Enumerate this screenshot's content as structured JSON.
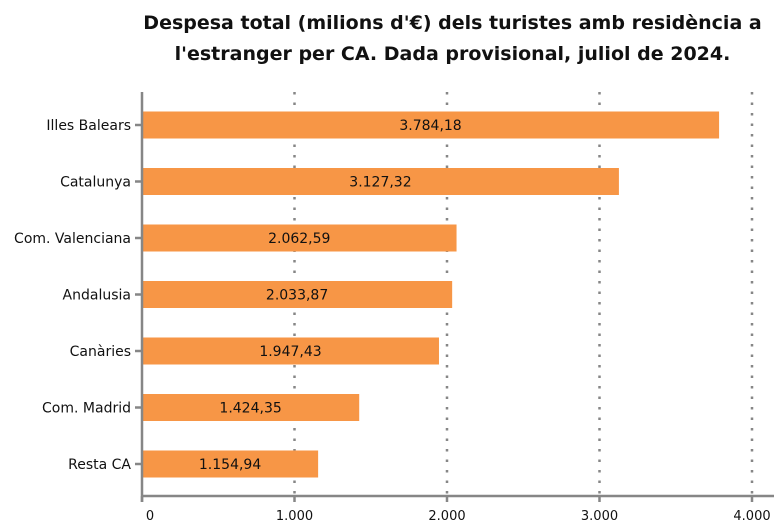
{
  "chart_data": {
    "type": "bar",
    "orientation": "horizontal",
    "title_lines": [
      "Despesa total (milions d'€) dels turistes amb residència a",
      "l'estranger per CA. Dada provisional, juliol de 2024."
    ],
    "categories": [
      "Illes Balears",
      "Catalunya",
      "Com. Valenciana",
      "Andalusia",
      "Canàries",
      "Com. Madrid",
      "Resta CA"
    ],
    "values": [
      3784.18,
      3127.32,
      2062.59,
      2033.87,
      1947.43,
      1424.35,
      1154.94
    ],
    "value_labels": [
      "3.784,18",
      "3.127,32",
      "2.062,59",
      "2.033,87",
      "1.947,43",
      "1.424,35",
      "1.154,94"
    ],
    "xlim": [
      0,
      4000
    ],
    "x_ticks": [
      0,
      1000,
      2000,
      3000,
      4000
    ],
    "x_tick_labels": [
      "0",
      "1.000",
      "2.000",
      "3.000",
      "4.000"
    ],
    "grid": "vertical dotted",
    "bar_color": "#F79646",
    "axis_color": "#868686",
    "grid_color": "#868686"
  }
}
